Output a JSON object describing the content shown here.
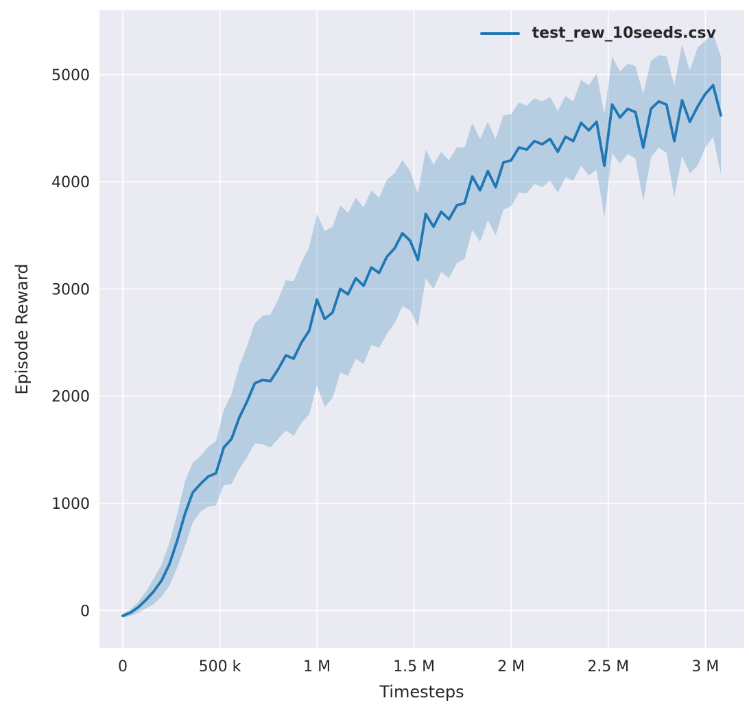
{
  "chart_data": {
    "type": "line",
    "title": "",
    "xlabel": "Timesteps",
    "ylabel": "Episode Reward",
    "grid": true,
    "legend_position": "upper right",
    "background_color": "#eaeaf2",
    "grid_color": "#ffffff",
    "text_color": "#262626",
    "xlim": [
      -120000,
      3200000
    ],
    "ylim": [
      -350,
      5600
    ],
    "x_ticks": [
      {
        "value": 0,
        "label": "0"
      },
      {
        "value": 500000,
        "label": "500 k"
      },
      {
        "value": 1000000,
        "label": "1 M"
      },
      {
        "value": 1500000,
        "label": "1.5 M"
      },
      {
        "value": 2000000,
        "label": "2 M"
      },
      {
        "value": 2500000,
        "label": "2.5 M"
      },
      {
        "value": 3000000,
        "label": "3 M"
      }
    ],
    "y_ticks": [
      {
        "value": 0,
        "label": "0"
      },
      {
        "value": 1000,
        "label": "1000"
      },
      {
        "value": 2000,
        "label": "2000"
      },
      {
        "value": 3000,
        "label": "3000"
      },
      {
        "value": 4000,
        "label": "4000"
      },
      {
        "value": 5000,
        "label": "5000"
      }
    ],
    "series": [
      {
        "name": "test_rew_10seeds.csv",
        "color": "#1f77b4",
        "band_color": "#1f77b4",
        "band_alpha": 0.25,
        "x": [
          0,
          40000,
          80000,
          120000,
          160000,
          200000,
          240000,
          280000,
          320000,
          360000,
          400000,
          440000,
          480000,
          520000,
          560000,
          600000,
          640000,
          680000,
          720000,
          760000,
          800000,
          840000,
          880000,
          920000,
          960000,
          1000000,
          1040000,
          1080000,
          1120000,
          1160000,
          1200000,
          1240000,
          1280000,
          1320000,
          1360000,
          1400000,
          1440000,
          1480000,
          1520000,
          1560000,
          1600000,
          1640000,
          1680000,
          1720000,
          1760000,
          1800000,
          1840000,
          1880000,
          1920000,
          1960000,
          2000000,
          2040000,
          2080000,
          2120000,
          2160000,
          2200000,
          2240000,
          2280000,
          2320000,
          2360000,
          2400000,
          2440000,
          2480000,
          2520000,
          2560000,
          2600000,
          2640000,
          2680000,
          2720000,
          2760000,
          2800000,
          2840000,
          2880000,
          2920000,
          2960000,
          3000000,
          3040000,
          3080000
        ],
        "mean": [
          -50,
          -20,
          30,
          100,
          180,
          280,
          430,
          650,
          900,
          1100,
          1180,
          1250,
          1280,
          1520,
          1600,
          1800,
          1950,
          2120,
          2150,
          2140,
          2250,
          2380,
          2350,
          2500,
          2610,
          2900,
          2720,
          2780,
          3000,
          2950,
          3100,
          3030,
          3200,
          3150,
          3300,
          3380,
          3520,
          3450,
          3270,
          3700,
          3580,
          3720,
          3650,
          3780,
          3800,
          4050,
          3920,
          4100,
          3950,
          4180,
          4200,
          4320,
          4300,
          4380,
          4350,
          4400,
          4280,
          4420,
          4380,
          4550,
          4480,
          4560,
          4150,
          4720,
          4600,
          4680,
          4650,
          4320,
          4680,
          4750,
          4720,
          4380,
          4760,
          4560,
          4700,
          4820,
          4900,
          4620
        ],
        "lower": [
          -70,
          -50,
          -20,
          20,
          60,
          130,
          230,
          400,
          600,
          820,
          920,
          970,
          980,
          1170,
          1180,
          1320,
          1430,
          1560,
          1550,
          1520,
          1600,
          1680,
          1630,
          1750,
          1830,
          2100,
          1900,
          1980,
          2220,
          2190,
          2350,
          2300,
          2480,
          2450,
          2580,
          2680,
          2840,
          2800,
          2650,
          3100,
          3000,
          3160,
          3100,
          3240,
          3280,
          3550,
          3440,
          3640,
          3500,
          3740,
          3770,
          3900,
          3890,
          3980,
          3950,
          4010,
          3900,
          4040,
          4010,
          4150,
          4060,
          4110,
          3670,
          4270,
          4170,
          4260,
          4220,
          3820,
          4230,
          4320,
          4270,
          3860,
          4240,
          4080,
          4150,
          4320,
          4420,
          4070
        ],
        "upper": [
          -30,
          10,
          80,
          180,
          300,
          430,
          630,
          900,
          1200,
          1380,
          1440,
          1530,
          1580,
          1870,
          2020,
          2280,
          2470,
          2680,
          2750,
          2760,
          2900,
          3080,
          3070,
          3250,
          3390,
          3700,
          3540,
          3580,
          3780,
          3710,
          3850,
          3760,
          3920,
          3850,
          4020,
          4080,
          4200,
          4100,
          3890,
          4300,
          4160,
          4280,
          4200,
          4320,
          4320,
          4550,
          4400,
          4560,
          4400,
          4620,
          4630,
          4740,
          4710,
          4780,
          4750,
          4790,
          4660,
          4800,
          4750,
          4950,
          4900,
          5010,
          4630,
          5170,
          5030,
          5100,
          5080,
          4820,
          5130,
          5180,
          5170,
          4900,
          5280,
          5040,
          5250,
          5320,
          5380,
          5170
        ]
      }
    ],
    "legend": [
      {
        "label": "test_rew_10seeds.csv",
        "color": "#1f77b4"
      }
    ]
  }
}
